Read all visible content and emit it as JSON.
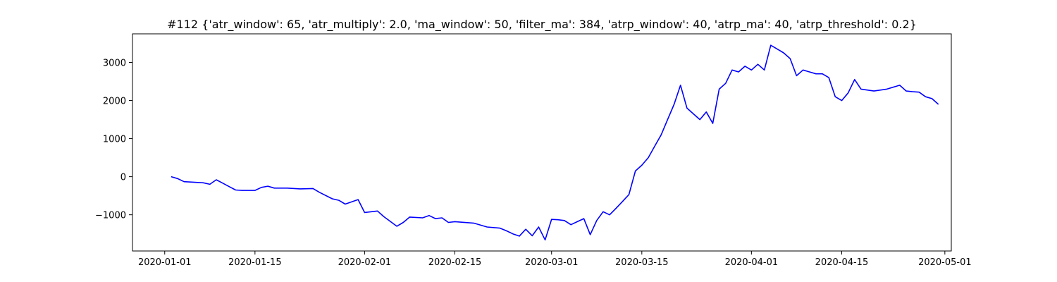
{
  "chart_data": {
    "type": "line",
    "title": "#112 {'atr_window': 65, 'atr_multiply': 2.0, 'ma_window': 50, 'filter_ma': 384, 'atrp_window': 40, 'atrp_ma': 40, 'atrp_threshold': 0.2}",
    "xlabel": "",
    "ylabel": "",
    "grid": false,
    "legend": "none",
    "xlim": [
      "2019-12-27",
      "2020-05-02"
    ],
    "ylim": [
      -1950,
      3750
    ],
    "x_ticks": [
      "2020-01-01",
      "2020-01-15",
      "2020-02-01",
      "2020-02-15",
      "2020-03-01",
      "2020-03-15",
      "2020-04-01",
      "2020-04-15",
      "2020-05-01"
    ],
    "y_ticks": [
      -1000,
      0,
      1000,
      2000,
      3000
    ],
    "series": [
      {
        "color": "#0000ff",
        "points": [
          [
            "2020-01-02",
            0
          ],
          [
            "2020-01-03",
            -50
          ],
          [
            "2020-01-04",
            -130
          ],
          [
            "2020-01-05",
            -140
          ],
          [
            "2020-01-07",
            -160
          ],
          [
            "2020-01-08",
            -200
          ],
          [
            "2020-01-09",
            -80
          ],
          [
            "2020-01-10",
            -170
          ],
          [
            "2020-01-11",
            -260
          ],
          [
            "2020-01-12",
            -350
          ],
          [
            "2020-01-13",
            -360
          ],
          [
            "2020-01-15",
            -360
          ],
          [
            "2020-01-16",
            -280
          ],
          [
            "2020-01-17",
            -250
          ],
          [
            "2020-01-18",
            -300
          ],
          [
            "2020-01-20",
            -300
          ],
          [
            "2020-01-22",
            -320
          ],
          [
            "2020-01-24",
            -310
          ],
          [
            "2020-01-25",
            -410
          ],
          [
            "2020-01-27",
            -580
          ],
          [
            "2020-01-28",
            -620
          ],
          [
            "2020-01-29",
            -720
          ],
          [
            "2020-01-31",
            -600
          ],
          [
            "2020-02-01",
            -940
          ],
          [
            "2020-02-03",
            -900
          ],
          [
            "2020-02-04",
            -1050
          ],
          [
            "2020-02-06",
            -1300
          ],
          [
            "2020-02-07",
            -1200
          ],
          [
            "2020-02-08",
            -1060
          ],
          [
            "2020-02-10",
            -1080
          ],
          [
            "2020-02-11",
            -1020
          ],
          [
            "2020-02-12",
            -1100
          ],
          [
            "2020-02-13",
            -1080
          ],
          [
            "2020-02-14",
            -1200
          ],
          [
            "2020-02-15",
            -1180
          ],
          [
            "2020-02-18",
            -1220
          ],
          [
            "2020-02-20",
            -1320
          ],
          [
            "2020-02-22",
            -1350
          ],
          [
            "2020-02-23",
            -1420
          ],
          [
            "2020-02-24",
            -1500
          ],
          [
            "2020-02-25",
            -1560
          ],
          [
            "2020-02-26",
            -1380
          ],
          [
            "2020-02-27",
            -1550
          ],
          [
            "2020-02-28",
            -1320
          ],
          [
            "2020-02-29",
            -1660
          ],
          [
            "2020-03-01",
            -1120
          ],
          [
            "2020-03-02",
            -1130
          ],
          [
            "2020-03-03",
            -1150
          ],
          [
            "2020-03-04",
            -1260
          ],
          [
            "2020-03-05",
            -1180
          ],
          [
            "2020-03-06",
            -1100
          ],
          [
            "2020-03-07",
            -1520
          ],
          [
            "2020-03-08",
            -1150
          ],
          [
            "2020-03-09",
            -920
          ],
          [
            "2020-03-10",
            -1000
          ],
          [
            "2020-03-11",
            -830
          ],
          [
            "2020-03-12",
            -650
          ],
          [
            "2020-03-13",
            -470
          ],
          [
            "2020-03-14",
            150
          ],
          [
            "2020-03-15",
            300
          ],
          [
            "2020-03-16",
            500
          ],
          [
            "2020-03-17",
            800
          ],
          [
            "2020-03-18",
            1100
          ],
          [
            "2020-03-19",
            1500
          ],
          [
            "2020-03-20",
            1900
          ],
          [
            "2020-03-21",
            2400
          ],
          [
            "2020-03-22",
            1800
          ],
          [
            "2020-03-23",
            1650
          ],
          [
            "2020-03-24",
            1500
          ],
          [
            "2020-03-25",
            1700
          ],
          [
            "2020-03-26",
            1400
          ],
          [
            "2020-03-27",
            2300
          ],
          [
            "2020-03-28",
            2450
          ],
          [
            "2020-03-29",
            2800
          ],
          [
            "2020-03-30",
            2750
          ],
          [
            "2020-03-31",
            2900
          ],
          [
            "2020-04-01",
            2800
          ],
          [
            "2020-04-02",
            2950
          ],
          [
            "2020-04-03",
            2800
          ],
          [
            "2020-04-04",
            3450
          ],
          [
            "2020-04-05",
            3350
          ],
          [
            "2020-04-06",
            3250
          ],
          [
            "2020-04-07",
            3100
          ],
          [
            "2020-04-08",
            2650
          ],
          [
            "2020-04-09",
            2800
          ],
          [
            "2020-04-10",
            2750
          ],
          [
            "2020-04-11",
            2700
          ],
          [
            "2020-04-12",
            2700
          ],
          [
            "2020-04-13",
            2600
          ],
          [
            "2020-04-14",
            2100
          ],
          [
            "2020-04-15",
            2000
          ],
          [
            "2020-04-16",
            2200
          ],
          [
            "2020-04-17",
            2550
          ],
          [
            "2020-04-18",
            2300
          ],
          [
            "2020-04-20",
            2250
          ],
          [
            "2020-04-22",
            2300
          ],
          [
            "2020-04-24",
            2400
          ],
          [
            "2020-04-25",
            2250
          ],
          [
            "2020-04-26",
            2230
          ],
          [
            "2020-04-27",
            2220
          ],
          [
            "2020-04-28",
            2100
          ],
          [
            "2020-04-29",
            2050
          ],
          [
            "2020-04-30",
            1900
          ]
        ]
      }
    ]
  }
}
